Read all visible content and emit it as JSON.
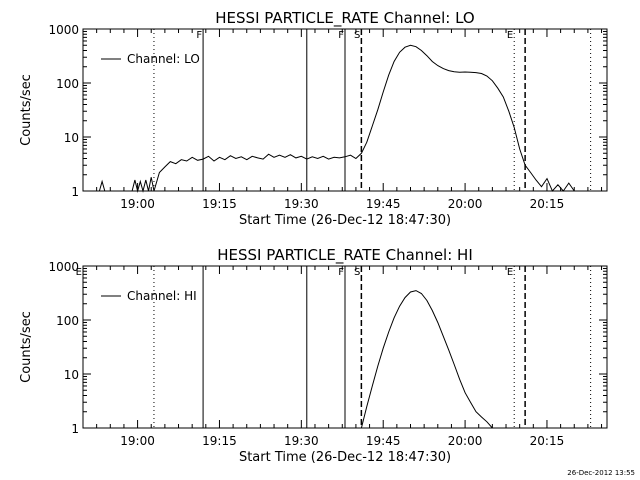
{
  "footer": {
    "timestamp": "26-Dec-2012 13:55"
  },
  "chart_data": [
    {
      "type": "line",
      "title": "HESSI PARTICLE_RATE Channel: LO",
      "xlabel": "Start Time (26-Dec-12 18:47:30)",
      "ylabel": "Counts/sec",
      "y_scale": "log",
      "xlim": [
        "18:50",
        "20:26"
      ],
      "ylim": [
        1,
        1000
      ],
      "x_ticks": [
        "19:00",
        "19:15",
        "19:30",
        "19:45",
        "20:00",
        "20:15"
      ],
      "y_ticks": [
        "1",
        "10",
        "100",
        "1000"
      ],
      "legend": {
        "position": "top-left",
        "entries": [
          "Channel: LO"
        ]
      },
      "vertical_markers": [
        {
          "time": "19:03",
          "style": "dotted",
          "label": ""
        },
        {
          "time": "19:12",
          "style": "solid",
          "label": "F"
        },
        {
          "time": "19:31",
          "style": "solid",
          "label": ""
        },
        {
          "time": "19:38",
          "style": "solid",
          "label": "F"
        },
        {
          "time": "19:41",
          "style": "dashed",
          "label": "S"
        },
        {
          "time": "20:09",
          "style": "dotted",
          "label": "E"
        },
        {
          "time": "20:11",
          "style": "dashed",
          "label": ""
        },
        {
          "time": "20:23",
          "style": "dotted",
          "label": ""
        }
      ],
      "series": [
        {
          "name": "Channel: LO",
          "x": [
            "18:53",
            "18:53.5",
            "18:54",
            "18:54.5",
            "18:55",
            "18:56",
            "18:59",
            "18:59.5",
            "19:00",
            "19:00.5",
            "19:01",
            "19:01.5",
            "19:02",
            "19:02.5",
            "19:03",
            "19:04",
            "19:05",
            "19:06",
            "19:07",
            "19:08",
            "19:09",
            "19:10",
            "19:11",
            "19:12",
            "19:13",
            "19:14",
            "19:15",
            "19:16",
            "19:17",
            "19:18",
            "19:19",
            "19:20",
            "19:21",
            "19:22",
            "19:23",
            "19:24",
            "19:25",
            "19:26",
            "19:27",
            "19:28",
            "19:29",
            "19:30",
            "19:31",
            "19:32",
            "19:33",
            "19:34",
            "19:35",
            "19:36",
            "19:37",
            "19:38",
            "19:39",
            "19:40",
            "19:41",
            "19:42",
            "19:43",
            "19:44",
            "19:45",
            "19:46",
            "19:47",
            "19:48",
            "19:49",
            "19:50",
            "19:51",
            "19:52",
            "19:53",
            "19:54",
            "19:55",
            "19:56",
            "19:57",
            "19:58",
            "19:59",
            "20:00",
            "20:01",
            "20:02",
            "20:03",
            "20:04",
            "20:05",
            "20:06",
            "20:07",
            "20:08",
            "20:09",
            "20:10",
            "20:11",
            "20:12",
            "20:13",
            "20:14",
            "20:15",
            "20:16",
            "20:17",
            "20:18",
            "20:19",
            "20:20"
          ],
          "values": [
            1,
            1.5,
            1,
            1,
            1,
            1,
            1,
            1.6,
            1,
            1.5,
            1,
            1.6,
            1,
            1.8,
            1,
            2.2,
            2.8,
            3.5,
            3.2,
            3.8,
            3.6,
            4.2,
            3.7,
            3.9,
            4.4,
            3.6,
            4.2,
            3.8,
            4.5,
            4,
            4.3,
            3.8,
            4.4,
            4.1,
            3.9,
            4.8,
            4.2,
            4.6,
            4.2,
            4.7,
            4.1,
            4.4,
            3.9,
            4.3,
            4,
            4.4,
            3.9,
            4.2,
            4.1,
            4.3,
            4.6,
            4,
            5,
            8,
            16,
            32,
            68,
            140,
            250,
            370,
            460,
            500,
            470,
            400,
            320,
            250,
            210,
            185,
            170,
            162,
            158,
            160,
            158,
            156,
            150,
            135,
            110,
            80,
            55,
            30,
            15,
            6,
            3,
            2.2,
            1.6,
            1.2,
            1.7,
            1,
            1.3,
            1,
            1.4,
            1
          ]
        }
      ]
    },
    {
      "type": "line",
      "title": "HESSI PARTICLE_RATE Channel: HI",
      "xlabel": "Start Time (26-Dec-12 18:47:30)",
      "ylabel": "Counts/sec",
      "y_scale": "log",
      "xlim": [
        "18:50",
        "20:26"
      ],
      "ylim": [
        1,
        1000
      ],
      "x_ticks": [
        "19:00",
        "19:15",
        "19:30",
        "19:45",
        "20:00",
        "20:15"
      ],
      "y_ticks": [
        "1",
        "10",
        "100",
        "1000"
      ],
      "legend": {
        "position": "top-left",
        "entries": [
          "Channel: HI"
        ]
      },
      "vertical_markers": [
        {
          "time": "18:50",
          "style": "solid",
          "label": "E"
        },
        {
          "time": "19:03",
          "style": "dotted",
          "label": ""
        },
        {
          "time": "19:12",
          "style": "solid",
          "label": ""
        },
        {
          "time": "19:31",
          "style": "solid",
          "label": ""
        },
        {
          "time": "19:38",
          "style": "solid",
          "label": "F"
        },
        {
          "time": "19:41",
          "style": "dashed",
          "label": "S"
        },
        {
          "time": "20:09",
          "style": "dotted",
          "label": "E"
        },
        {
          "time": "20:11",
          "style": "dashed",
          "label": ""
        },
        {
          "time": "20:23",
          "style": "dotted",
          "label": ""
        }
      ],
      "series": [
        {
          "name": "Channel: HI",
          "x": [
            "19:41",
            "19:42",
            "19:43",
            "19:44",
            "19:45",
            "19:46",
            "19:47",
            "19:48",
            "19:49",
            "19:50",
            "19:51",
            "19:52",
            "19:53",
            "19:54",
            "19:55",
            "19:56",
            "19:57",
            "19:58",
            "19:59",
            "20:00",
            "20:01",
            "20:02",
            "20:03",
            "20:04",
            "20:05"
          ],
          "values": [
            1,
            2.5,
            6,
            14,
            30,
            60,
            110,
            180,
            260,
            330,
            350,
            310,
            230,
            150,
            90,
            50,
            28,
            15,
            8,
            4.5,
            3,
            2,
            1.6,
            1.3,
            1
          ]
        }
      ]
    }
  ]
}
